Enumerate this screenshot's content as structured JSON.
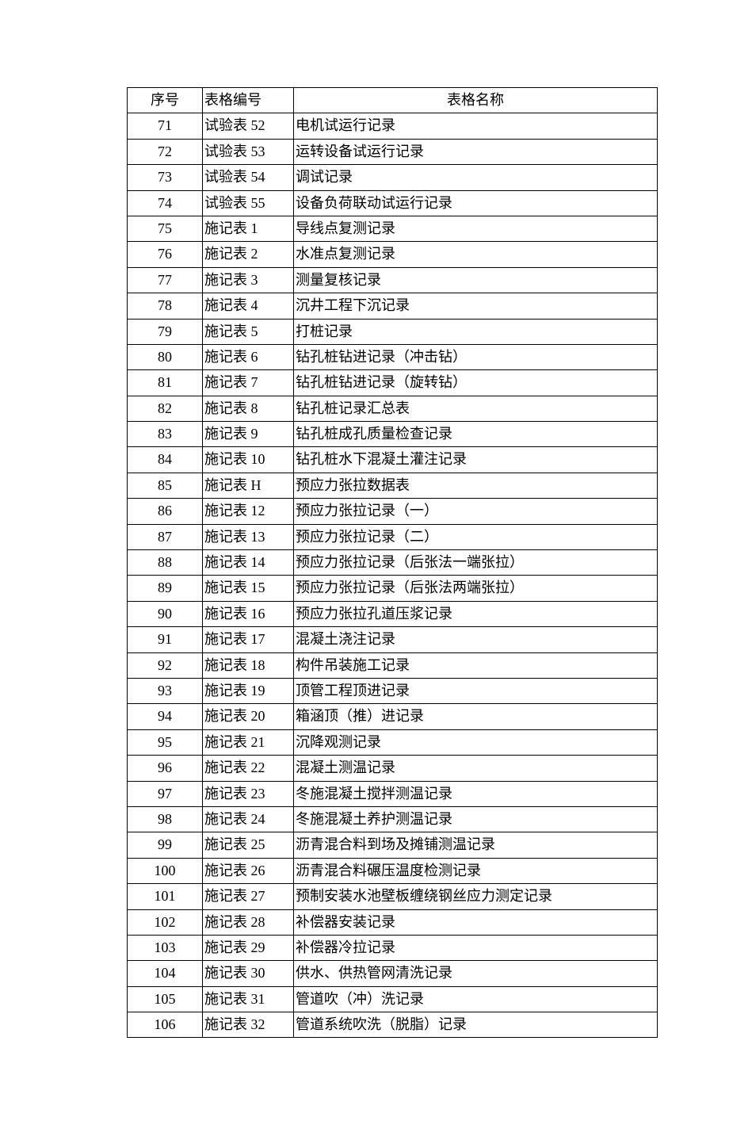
{
  "table": {
    "headers": {
      "seq": "序号",
      "code": "表格编号",
      "name": "表格名称"
    },
    "rows": [
      {
        "seq": "71",
        "code": "试验表 52",
        "name": "电机试运行记录"
      },
      {
        "seq": "72",
        "code": "试验表 53",
        "name": "运转设备试运行记录"
      },
      {
        "seq": "73",
        "code": "试验表 54",
        "name": "调试记录"
      },
      {
        "seq": "74",
        "code": "试验表 55",
        "name": "设备负荷联动试运行记录"
      },
      {
        "seq": "75",
        "code": "施记表 1",
        "name": "导线点复测记录"
      },
      {
        "seq": "76",
        "code": "施记表 2",
        "name": "水准点复测记录"
      },
      {
        "seq": "77",
        "code": "施记表 3",
        "name": "测量复核记录"
      },
      {
        "seq": "78",
        "code": "施记表 4",
        "name": "沉井工程下沉记录"
      },
      {
        "seq": "79",
        "code": "施记表 5",
        "name": "打桩记录"
      },
      {
        "seq": "80",
        "code": "施记表 6",
        "name": "钻孔桩钻进记录（冲击钻）"
      },
      {
        "seq": "81",
        "code": "施记表 7",
        "name": "钻孔桩钻进记录（旋转钻）"
      },
      {
        "seq": "82",
        "code": "施记表 8",
        "name": "钻孔桩记录汇总表"
      },
      {
        "seq": "83",
        "code": "施记表 9",
        "name": "钻孔桩成孔质量检查记录"
      },
      {
        "seq": "84",
        "code": "施记表 10",
        "name": "钻孔桩水下混凝土灌注记录"
      },
      {
        "seq": "85",
        "code": "施记表 H",
        "name": "预应力张拉数据表"
      },
      {
        "seq": "86",
        "code": "施记表 12",
        "name": "预应力张拉记录（一）"
      },
      {
        "seq": "87",
        "code": "施记表 13",
        "name": "预应力张拉记录（二）"
      },
      {
        "seq": "88",
        "code": "施记表 14",
        "name": "预应力张拉记录（后张法一端张拉）"
      },
      {
        "seq": "89",
        "code": "施记表 15",
        "name": "预应力张拉记录（后张法两端张拉）"
      },
      {
        "seq": "90",
        "code": "施记表 16",
        "name": "预应力张拉孔道压浆记录"
      },
      {
        "seq": "91",
        "code": "施记表 17",
        "name": "混凝土浇注记录"
      },
      {
        "seq": "92",
        "code": "施记表 18",
        "name": "构件吊装施工记录"
      },
      {
        "seq": "93",
        "code": "施记表 19",
        "name": "顶管工程顶进记录"
      },
      {
        "seq": "94",
        "code": "施记表 20",
        "name": "箱涵顶（推）进记录"
      },
      {
        "seq": "95",
        "code": "施记表 21",
        "name": "沉降观测记录"
      },
      {
        "seq": "96",
        "code": "施记表 22",
        "name": "混凝土测温记录"
      },
      {
        "seq": "97",
        "code": "施记表 23",
        "name": "冬施混凝土搅拌测温记录"
      },
      {
        "seq": "98",
        "code": "施记表 24",
        "name": "冬施混凝土养护测温记录"
      },
      {
        "seq": "99",
        "code": "施记表 25",
        "name": "沥青混合料到场及摊铺测温记录"
      },
      {
        "seq": "100",
        "code": "施记表 26",
        "name": "沥青混合料碾压温度检测记录"
      },
      {
        "seq": "101",
        "code": "施记表 27",
        "name": "预制安装水池壁板缠绕钢丝应力测定记录"
      },
      {
        "seq": "102",
        "code": "施记表 28",
        "name": "补偿器安装记录"
      },
      {
        "seq": "103",
        "code": "施记表 29",
        "name": "补偿器冷拉记录"
      },
      {
        "seq": "104",
        "code": "施记表 30",
        "name": "供水、供热管网清洗记录"
      },
      {
        "seq": "105",
        "code": "施记表 31",
        "name": "管道吹（冲）洗记录"
      },
      {
        "seq": "106",
        "code": "施记表 32",
        "name": "管道系统吹洗（脱脂）记录"
      }
    ]
  }
}
